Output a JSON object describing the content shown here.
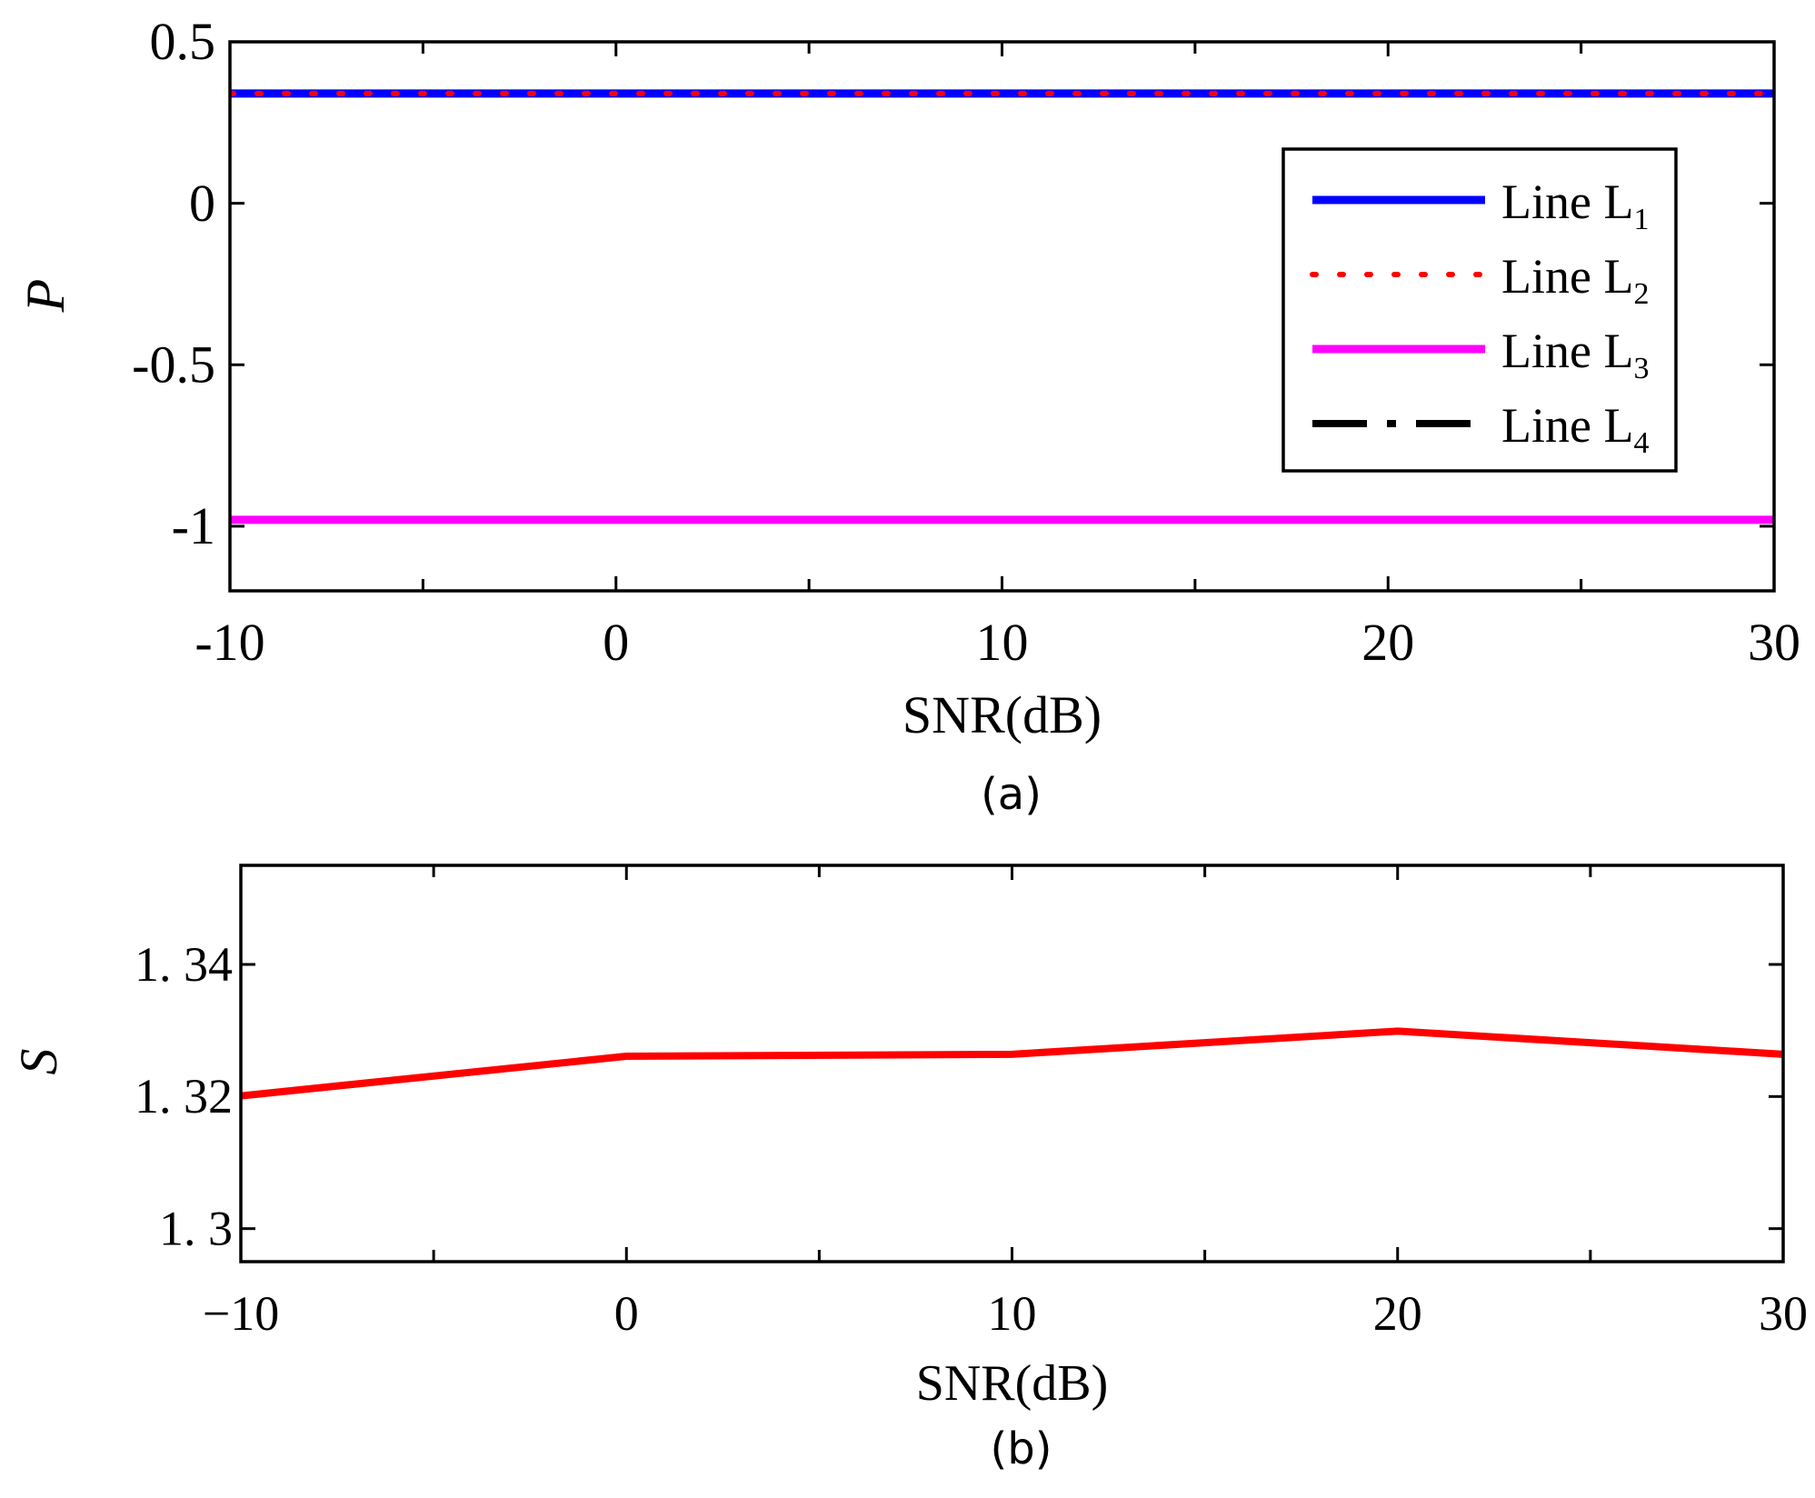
{
  "chart_data": [
    {
      "type": "line",
      "panel_label": "(a)",
      "xlabel": "SNR(dB)",
      "ylabel": "P",
      "xlim": [
        -10,
        30
      ],
      "ylim": [
        -1.2,
        0.5
      ],
      "xticks": [
        -10,
        0,
        10,
        20,
        30
      ],
      "xtick_labels": [
        "-10",
        "0",
        "10",
        "20",
        "30"
      ],
      "yticks": [
        0.5,
        0,
        -0.5,
        -1
      ],
      "ytick_labels": [
        "0.5",
        "0",
        "-0.5",
        "-1"
      ],
      "grid": false,
      "legend_position": "top-right",
      "x": [
        -10,
        0,
        10,
        20,
        30
      ],
      "series": [
        {
          "name": "Line L",
          "subscript": "1",
          "values": [
            0.34,
            0.34,
            0.34,
            0.34,
            0.34
          ],
          "color": "#0000ff",
          "style": "solid"
        },
        {
          "name": "Line L",
          "subscript": "2",
          "values": [
            0.34,
            0.34,
            0.34,
            0.34,
            0.34
          ],
          "color": "#ff0000",
          "style": "dotted"
        },
        {
          "name": "Line L",
          "subscript": "3",
          "values": [
            -0.98,
            -0.98,
            -0.98,
            -0.98,
            -0.98
          ],
          "color": "#ff00ff",
          "style": "solid"
        },
        {
          "name": "Line L",
          "subscript": "4",
          "values": [
            0.34,
            0.34,
            0.34,
            0.34,
            0.34
          ],
          "color": "#000000",
          "style": "dashdot"
        }
      ]
    },
    {
      "type": "line",
      "panel_label": "(b)",
      "xlabel": "SNR(dB)",
      "ylabel": "S",
      "xlim": [
        -10,
        30
      ],
      "ylim": [
        1.295,
        1.355
      ],
      "xticks": [
        -10,
        0,
        10,
        20,
        30
      ],
      "xtick_labels": [
        "−10",
        "0",
        "10",
        "20",
        "30"
      ],
      "yticks": [
        1.34,
        1.32,
        1.3
      ],
      "ytick_labels": [
        "1. 34",
        "1. 32",
        "1. 3"
      ],
      "grid": false,
      "x": [
        -10,
        0,
        10,
        20,
        30
      ],
      "series": [
        {
          "name": "S",
          "values": [
            1.3201,
            1.3261,
            1.3264,
            1.3299,
            1.3264
          ],
          "color": "#ff0000",
          "style": "solid"
        }
      ]
    }
  ]
}
